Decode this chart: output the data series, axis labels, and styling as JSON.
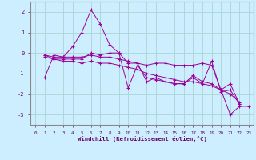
{
  "xlabel": "Windchill (Refroidissement éolien,°C)",
  "bg_color": "#cceeff",
  "grid_color": "#aad4d4",
  "line_color": "#990099",
  "xlim": [
    -0.5,
    23.5
  ],
  "ylim": [
    -3.5,
    2.5
  ],
  "yticks": [
    -3,
    -2,
    -1,
    0,
    1,
    2
  ],
  "xticks": [
    0,
    1,
    2,
    3,
    4,
    5,
    6,
    7,
    8,
    9,
    10,
    11,
    12,
    13,
    14,
    15,
    16,
    17,
    18,
    19,
    20,
    21,
    22,
    23
  ],
  "series": [
    [
      null,
      -1.2,
      -0.1,
      -0.2,
      0.3,
      1.0,
      2.1,
      1.4,
      0.4,
      0.0,
      -1.7,
      -0.6,
      -1.2,
      -1.3,
      -1.4,
      -1.5,
      -1.5,
      -1.1,
      -1.4,
      -1.5,
      -1.8,
      -3.0,
      -2.6,
      -2.6
    ],
    [
      null,
      -0.1,
      -0.2,
      -0.2,
      -0.2,
      -0.2,
      -0.1,
      -0.2,
      -0.2,
      -0.3,
      -0.4,
      -0.5,
      -0.6,
      -0.5,
      -0.5,
      -0.6,
      -0.6,
      -0.6,
      -0.5,
      -0.6,
      -1.8,
      -1.5,
      -2.5,
      null
    ],
    [
      null,
      -0.1,
      -0.3,
      -0.4,
      -0.4,
      -0.5,
      -0.4,
      -0.5,
      -0.5,
      -0.6,
      -0.7,
      -0.8,
      -1.0,
      -1.1,
      -1.2,
      -1.3,
      -1.4,
      -1.4,
      -1.5,
      -1.6,
      -1.8,
      -2.0,
      -2.4,
      null
    ],
    [
      null,
      -0.2,
      -0.3,
      -0.3,
      -0.3,
      -0.3,
      0.0,
      -0.1,
      0.0,
      0.0,
      -0.5,
      -0.5,
      -1.4,
      -1.2,
      -1.4,
      -1.5,
      -1.5,
      -1.2,
      -1.5,
      -0.4,
      -1.9,
      -1.8,
      -2.5,
      null
    ]
  ]
}
